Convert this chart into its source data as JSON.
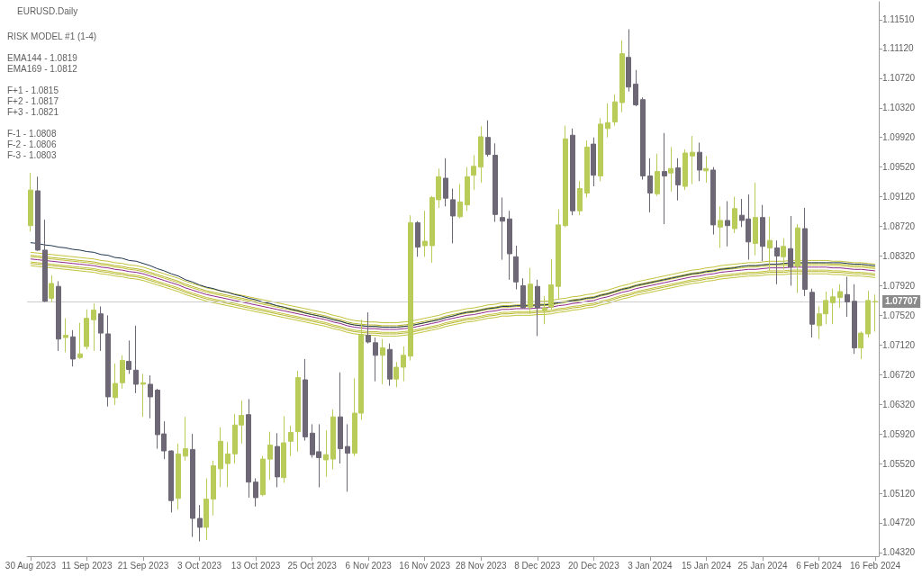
{
  "chart_data": {
    "type": "candlestick",
    "title": "EURUSD.Daily",
    "annotations": [
      "RISK MODEL #1 (1-4)",
      "EMA144 - 1.0819",
      "EMA169 - 1.0812",
      "F+1 - 1.0815",
      "F+2 - 1.0817",
      "F+3 - 1.0821",
      "F-1 - 1.0808",
      "F-2 - 1.0806",
      "F-3 - 1.0803"
    ],
    "categories": [
      "30 Aug 2023",
      null,
      null,
      null,
      null,
      null,
      null,
      null,
      "11 Sep 2023",
      null,
      null,
      null,
      null,
      null,
      null,
      null,
      "21 Sep 2023",
      null,
      null,
      null,
      null,
      null,
      null,
      null,
      "3 Oct 2023",
      null,
      null,
      null,
      null,
      null,
      null,
      null,
      "13 Oct 2023",
      null,
      null,
      null,
      null,
      null,
      null,
      null,
      "25 Oct 2023",
      null,
      null,
      null,
      null,
      null,
      null,
      null,
      "6 Nov 2023",
      null,
      null,
      null,
      null,
      null,
      null,
      null,
      "16 Nov 2023",
      null,
      null,
      null,
      null,
      null,
      null,
      null,
      "28 Nov 2023",
      null,
      null,
      null,
      null,
      null,
      null,
      null,
      "8 Dec 2023",
      null,
      null,
      null,
      null,
      null,
      null,
      null,
      "20 Dec 2023",
      null,
      null,
      null,
      null,
      null,
      null,
      null,
      "3 Jan 2024",
      null,
      null,
      null,
      null,
      null,
      null,
      null,
      "15 Jan 2024",
      null,
      null,
      null,
      null,
      null,
      null,
      null,
      "25 Jan 2024",
      null,
      null,
      null,
      null,
      null,
      null,
      null,
      "6 Feb 2024",
      null,
      null,
      null,
      null,
      null,
      null,
      null,
      "16 Feb 2024"
    ],
    "ohlc": [
      [
        1.0873,
        1.0944,
        1.0865,
        1.0921
      ],
      [
        1.092,
        1.0939,
        1.0839,
        1.084
      ],
      [
        1.084,
        1.0881,
        1.077,
        1.0771
      ],
      [
        1.0775,
        1.0806,
        1.077,
        1.0795
      ],
      [
        1.0791,
        1.0798,
        1.0704,
        1.072
      ],
      [
        1.0722,
        1.0748,
        1.0702,
        1.0725
      ],
      [
        1.0723,
        1.0732,
        1.0683,
        1.0693
      ],
      [
        1.0695,
        1.0742,
        1.0693,
        1.07
      ],
      [
        1.071,
        1.076,
        1.0706,
        1.0748
      ],
      [
        1.0746,
        1.0768,
        1.0704,
        1.0759
      ],
      [
        1.0754,
        1.0764,
        1.0704,
        1.0728
      ],
      [
        1.0727,
        1.0752,
        1.0629,
        1.0642
      ],
      [
        1.0641,
        1.0687,
        1.0631,
        1.066
      ],
      [
        1.0661,
        1.0698,
        1.0653,
        1.0691
      ],
      [
        1.069,
        1.0718,
        1.0673,
        1.0679
      ],
      [
        1.0678,
        1.0738,
        1.0647,
        1.0659
      ],
      [
        1.0659,
        1.0673,
        1.0615,
        1.0661
      ],
      [
        1.0659,
        1.0671,
        1.0613,
        1.0642
      ],
      [
        1.0651,
        1.0653,
        1.0572,
        1.0591
      ],
      [
        1.0592,
        1.0609,
        1.0558,
        1.0569
      ],
      [
        1.0569,
        1.057,
        1.0486,
        1.0502
      ],
      [
        1.0505,
        1.0579,
        1.049,
        1.0565
      ],
      [
        1.0562,
        1.0615,
        1.0556,
        1.0572
      ],
      [
        1.0571,
        1.0592,
        1.0453,
        1.0478
      ],
      [
        1.0478,
        1.0496,
        1.0447,
        1.0466
      ],
      [
        1.0466,
        1.0532,
        1.0449,
        1.0504
      ],
      [
        1.0504,
        1.0556,
        1.0482,
        1.0549
      ],
      [
        1.0545,
        1.0601,
        1.052,
        1.0582
      ],
      [
        1.0552,
        1.0581,
        1.052,
        1.0565
      ],
      [
        1.0565,
        1.0619,
        1.0552,
        1.0604
      ],
      [
        1.0604,
        1.0637,
        1.0579,
        1.0617
      ],
      [
        1.0618,
        1.0639,
        1.0506,
        1.0527
      ],
      [
        1.0527,
        1.0532,
        1.0494,
        1.0506
      ],
      [
        1.051,
        1.0562,
        1.0508,
        1.0558
      ],
      [
        1.0558,
        1.0595,
        1.053,
        1.0577
      ],
      [
        1.0575,
        1.0593,
        1.052,
        1.0534
      ],
      [
        1.0533,
        1.0616,
        1.0526,
        1.058
      ],
      [
        1.0582,
        1.0603,
        1.0562,
        1.0594
      ],
      [
        1.0595,
        1.0677,
        1.0568,
        1.0668
      ],
      [
        1.0665,
        1.0693,
        1.0583,
        1.0588
      ],
      [
        1.0593,
        1.0605,
        1.056,
        1.0564
      ],
      [
        1.0568,
        1.0605,
        1.052,
        1.056
      ],
      [
        1.0557,
        1.0597,
        1.0534,
        1.0564
      ],
      [
        1.0558,
        1.0625,
        1.0544,
        1.0615
      ],
      [
        1.0615,
        1.0675,
        1.0552,
        1.0572
      ],
      [
        1.0575,
        1.0605,
        1.0514,
        1.0566
      ],
      [
        1.0566,
        1.0667,
        1.0562,
        1.062
      ],
      [
        1.062,
        1.0746,
        1.0611,
        1.0726
      ],
      [
        1.0725,
        1.0756,
        1.0714,
        1.0716
      ],
      [
        1.0715,
        1.0722,
        1.0663,
        1.0698
      ],
      [
        1.0698,
        1.072,
        1.0659,
        1.0708
      ],
      [
        1.0706,
        1.0714,
        1.0657,
        1.0666
      ],
      [
        1.0666,
        1.0689,
        1.0655,
        1.0682
      ],
      [
        1.0682,
        1.071,
        1.0663,
        1.0698
      ],
      [
        1.0697,
        1.0887,
        1.0691,
        1.0877
      ],
      [
        1.0877,
        1.0879,
        1.0831,
        1.0844
      ],
      [
        1.0846,
        1.0893,
        1.0831,
        1.0852
      ],
      [
        1.0846,
        1.0913,
        1.0823,
        1.0911
      ],
      [
        1.0908,
        1.095,
        1.0897,
        1.0939
      ],
      [
        1.0937,
        1.0964,
        1.0899,
        1.091
      ],
      [
        1.0908,
        1.0923,
        1.0849,
        1.0886
      ],
      [
        1.0885,
        1.0929,
        1.0883,
        1.0905
      ],
      [
        1.0901,
        1.0952,
        1.0893,
        1.0939
      ],
      [
        1.0941,
        1.0968,
        1.0921,
        1.0953
      ],
      [
        1.0952,
        1.1007,
        1.0931,
        1.0993
      ],
      [
        1.0992,
        1.1015,
        1.0966,
        1.0969
      ],
      [
        1.0968,
        1.0984,
        1.0878,
        1.0888
      ],
      [
        1.0884,
        1.0911,
        1.0827,
        1.0879
      ],
      [
        1.0882,
        1.0893,
        1.08,
        1.0835
      ],
      [
        1.0831,
        1.0846,
        1.0787,
        1.0797
      ],
      [
        1.0792,
        1.0802,
        1.0761,
        1.0762
      ],
      [
        1.0763,
        1.0816,
        1.0754,
        1.0794
      ],
      [
        1.0791,
        1.08,
        1.0724,
        1.0762
      ],
      [
        1.0759,
        1.0778,
        1.074,
        1.0762
      ],
      [
        1.0763,
        1.0828,
        1.076,
        1.0793
      ],
      [
        1.0791,
        1.0895,
        1.0774,
        1.0874
      ],
      [
        1.0873,
        1.1008,
        1.0871,
        1.099
      ],
      [
        1.0995,
        1.1004,
        1.0887,
        1.0893
      ],
      [
        1.0893,
        1.0933,
        1.0887,
        1.0923
      ],
      [
        1.0917,
        1.0988,
        1.0911,
        1.0979
      ],
      [
        1.0983,
        1.0992,
        1.0926,
        1.0941
      ],
      [
        1.094,
        1.1018,
        1.0933,
        1.101
      ],
      [
        1.1004,
        1.1038,
        1.0992,
        1.1012
      ],
      [
        1.1013,
        1.105,
        1.1008,
        1.104
      ],
      [
        1.1039,
        1.1123,
        1.1026,
        1.1105
      ],
      [
        1.11,
        1.1138,
        1.1054,
        1.106
      ],
      [
        1.1064,
        1.1083,
        1.1034,
        1.1036
      ],
      [
        1.1043,
        1.1046,
        1.0935,
        1.094
      ],
      [
        1.094,
        1.0964,
        1.0891,
        1.0917
      ],
      [
        1.0916,
        1.097,
        1.0913,
        1.0946
      ],
      [
        1.0946,
        1.0998,
        1.0875,
        1.094
      ],
      [
        1.0944,
        1.0979,
        1.0919,
        1.095
      ],
      [
        1.0951,
        1.0964,
        1.0907,
        1.0928
      ],
      [
        1.0926,
        1.0976,
        1.0921,
        1.0971
      ],
      [
        1.0967,
        1.0994,
        1.0929,
        1.0972
      ],
      [
        1.0972,
        1.0985,
        1.0933,
        1.0948
      ],
      [
        1.0947,
        1.0967,
        1.0931,
        1.095
      ],
      [
        1.0948,
        1.0952,
        1.0861,
        1.0874
      ],
      [
        1.0871,
        1.0899,
        1.0843,
        1.088
      ],
      [
        1.088,
        1.0906,
        1.0845,
        1.0873
      ],
      [
        1.0869,
        1.0912,
        1.0863,
        1.0896
      ],
      [
        1.0887,
        1.0909,
        1.0871,
        1.088
      ],
      [
        1.0882,
        1.0915,
        1.0827,
        1.0851
      ],
      [
        1.0849,
        1.0931,
        1.0833,
        1.0884
      ],
      [
        1.0884,
        1.0901,
        1.0825,
        1.0845
      ],
      [
        1.0843,
        1.0885,
        1.0812,
        1.0853
      ],
      [
        1.0843,
        1.0853,
        1.0794,
        1.0832
      ],
      [
        1.0831,
        1.0856,
        1.0814,
        1.0845
      ],
      [
        1.0842,
        1.0886,
        1.0792,
        1.0817
      ],
      [
        1.0818,
        1.0875,
        1.0782,
        1.087
      ],
      [
        1.0869,
        1.0897,
        1.0778,
        1.0787
      ],
      [
        1.0783,
        1.0788,
        1.0722,
        1.074
      ],
      [
        1.0738,
        1.0764,
        1.072,
        1.0754
      ],
      [
        1.0754,
        1.0784,
        1.074,
        1.0772
      ],
      [
        1.0769,
        1.0788,
        1.074,
        1.0777
      ],
      [
        1.0776,
        1.0794,
        1.0762,
        1.0784
      ],
      [
        1.078,
        1.0804,
        1.075,
        1.077
      ],
      [
        1.0771,
        1.0794,
        1.07,
        1.0708
      ],
      [
        1.0708,
        1.073,
        1.0693,
        1.0728
      ],
      [
        1.0727,
        1.0785,
        1.0722,
        1.0772
      ],
      [
        1.077,
        1.078,
        1.073,
        1.07707
      ]
    ],
    "colors": [
      "#b9cc5a",
      "#6e6876",
      "#6e6876",
      "#b9cc5a",
      "#6e6876",
      "#b9cc5a",
      "#6e6876",
      "#b9cc5a",
      "#b9cc5a",
      "#b9cc5a",
      "#6e6876",
      "#6e6876",
      "#b9cc5a",
      "#b9cc5a",
      "#6e6876",
      "#6e6876",
      "#b9cc5a",
      "#6e6876",
      "#6e6876",
      "#6e6876",
      "#6e6876",
      "#b9cc5a",
      "#b9cc5a",
      "#6e6876",
      "#6e6876",
      "#b9cc5a",
      "#b9cc5a",
      "#b9cc5a",
      "#b9cc5a",
      "#b9cc5a",
      "#b9cc5a",
      "#6e6876",
      "#6e6876",
      "#b9cc5a",
      "#b9cc5a",
      "#6e6876",
      "#b9cc5a",
      "#b9cc5a",
      "#b9cc5a",
      "#6e6876",
      "#6e6876",
      "#6e6876",
      "#b9cc5a",
      "#b9cc5a",
      "#6e6876",
      "#6e6876",
      "#b9cc5a",
      "#b9cc5a",
      "#6e6876",
      "#6e6876",
      "#b9cc5a",
      "#6e6876",
      "#b9cc5a",
      "#b9cc5a",
      "#b9cc5a",
      "#6e6876",
      "#b9cc5a",
      "#b9cc5a",
      "#b9cc5a",
      "#6e6876",
      "#6e6876",
      "#b9cc5a",
      "#b9cc5a",
      "#b9cc5a",
      "#b9cc5a",
      "#6e6876",
      "#6e6876",
      "#6e6876",
      "#6e6876",
      "#6e6876",
      "#6e6876",
      "#b9cc5a",
      "#6e6876",
      "#b9cc5a",
      "#b9cc5a",
      "#b9cc5a",
      "#b9cc5a",
      "#6e6876",
      "#b9cc5a",
      "#b9cc5a",
      "#6e6876",
      "#b9cc5a",
      "#b9cc5a",
      "#b9cc5a",
      "#b9cc5a",
      "#6e6876",
      "#6e6876",
      "#6e6876",
      "#6e6876",
      "#b9cc5a",
      "#6e6876",
      "#b9cc5a",
      "#6e6876",
      "#b9cc5a",
      "#b9cc5a",
      "#6e6876",
      "#b9cc5a",
      "#6e6876",
      "#b9cc5a",
      "#6e6876",
      "#b9cc5a",
      "#6e6876",
      "#6e6876",
      "#b9cc5a",
      "#6e6876",
      "#b9cc5a",
      "#6e6876",
      "#b9cc5a",
      "#6e6876",
      "#b9cc5a",
      "#6e6876",
      "#6e6876",
      "#b9cc5a",
      "#b9cc5a",
      "#b9cc5a",
      "#b9cc5a",
      "#6e6876",
      "#6e6876",
      "#b9cc5a",
      "#b9cc5a",
      "#b9cc5a"
    ],
    "series": [
      {
        "type": "line",
        "color": "#c2c23a",
        "values": [
          1.0837,
          1.0836,
          1.0835,
          1.0834,
          1.0833,
          1.0832,
          1.0831,
          1.083,
          1.0829,
          1.0828,
          1.0826,
          1.0825,
          1.0823,
          1.0822,
          1.082,
          1.0819,
          1.0817,
          1.0814,
          1.0811,
          1.0808,
          1.0805,
          1.0802,
          1.0798,
          1.0795,
          1.0792,
          1.0789,
          1.0787,
          1.0785,
          1.0783,
          1.0781,
          1.0779,
          1.0777,
          1.0775,
          1.0773,
          1.0771,
          1.0769,
          1.0767,
          1.0765,
          1.0763,
          1.0761,
          1.0759,
          1.0757,
          1.0755,
          1.0752,
          1.075,
          1.0747,
          1.0745,
          1.0744,
          1.0743,
          1.0743,
          1.0742,
          1.0742,
          1.0742,
          1.0743,
          1.0744,
          1.0746,
          1.0748,
          1.075,
          1.0752,
          1.0755,
          1.0757,
          1.0759,
          1.0761,
          1.0762,
          1.0764,
          1.0766,
          1.0767,
          1.0769,
          1.0769,
          1.077,
          1.077,
          1.077,
          1.0771,
          1.0771,
          1.0772,
          1.0774,
          1.0775,
          1.0777,
          1.0778,
          1.078,
          1.0781,
          1.0784,
          1.0786,
          1.0789,
          1.0792,
          1.0794,
          1.0797,
          1.0799,
          1.0801,
          1.0803,
          1.0805,
          1.0807,
          1.0809,
          1.0811,
          1.0813,
          1.0814,
          1.0816,
          1.0817,
          1.0819,
          1.082,
          1.0821,
          1.0822,
          1.0823,
          1.0823,
          1.0824,
          1.0825,
          1.0825,
          1.0825,
          1.0826,
          1.0826,
          1.0826,
          1.0826,
          1.0826,
          1.0826,
          1.0825,
          1.0825,
          1.0824,
          1.0823,
          1.0823,
          1.0822,
          1.0821
        ]
      },
      {
        "type": "line",
        "color": "#b5b52a",
        "values": [
          1.0833,
          1.0832,
          1.0831,
          1.083,
          1.0829,
          1.0828,
          1.0827,
          1.0826,
          1.0825,
          1.0824,
          1.0822,
          1.0821,
          1.0819,
          1.0818,
          1.0816,
          1.0815,
          1.0813,
          1.081,
          1.0807,
          1.0804,
          1.0801,
          1.0798,
          1.0794,
          1.0791,
          1.0788,
          1.0785,
          1.0783,
          1.0781,
          1.0779,
          1.0777,
          1.0775,
          1.0773,
          1.0771,
          1.0769,
          1.0767,
          1.0765,
          1.0763,
          1.0761,
          1.0759,
          1.0757,
          1.0755,
          1.0753,
          1.0751,
          1.0748,
          1.0746,
          1.0743,
          1.0741,
          1.074,
          1.0739,
          1.0739,
          1.0738,
          1.0738,
          1.0738,
          1.0739,
          1.074,
          1.0742,
          1.0744,
          1.0746,
          1.0748,
          1.0751,
          1.0753,
          1.0755,
          1.0757,
          1.0758,
          1.076,
          1.0762,
          1.0763,
          1.0765,
          1.0765,
          1.0766,
          1.0766,
          1.0766,
          1.0767,
          1.0767,
          1.0768,
          1.077,
          1.0771,
          1.0773,
          1.0774,
          1.0776,
          1.0777,
          1.078,
          1.0782,
          1.0785,
          1.0788,
          1.079,
          1.0793,
          1.0795,
          1.0797,
          1.0799,
          1.0801,
          1.0803,
          1.0805,
          1.0807,
          1.0809,
          1.081,
          1.0812,
          1.0813,
          1.0815,
          1.0816,
          1.0817,
          1.0818,
          1.0819,
          1.0819,
          1.082,
          1.0821,
          1.0821,
          1.0821,
          1.0822,
          1.0822,
          1.0822,
          1.0822,
          1.0822,
          1.0822,
          1.0821,
          1.0821,
          1.082,
          1.0819,
          1.0819,
          1.0818,
          1.0817
        ]
      },
      {
        "type": "line",
        "color": "#c2c23a",
        "values": [
          1.0831,
          1.083,
          1.0829,
          1.0828,
          1.0827,
          1.0826,
          1.0825,
          1.0824,
          1.0823,
          1.0822,
          1.082,
          1.0819,
          1.0817,
          1.0816,
          1.0814,
          1.0813,
          1.0811,
          1.0808,
          1.0805,
          1.0802,
          1.0799,
          1.0796,
          1.0792,
          1.0789,
          1.0786,
          1.0783,
          1.0781,
          1.0779,
          1.0777,
          1.0775,
          1.0773,
          1.0771,
          1.0769,
          1.0767,
          1.0765,
          1.0763,
          1.0761,
          1.0759,
          1.0757,
          1.0755,
          1.0753,
          1.0751,
          1.0749,
          1.0746,
          1.0744,
          1.0741,
          1.0739,
          1.0738,
          1.0737,
          1.0737,
          1.0736,
          1.0736,
          1.0736,
          1.0737,
          1.0738,
          1.074,
          1.0742,
          1.0744,
          1.0746,
          1.0749,
          1.0751,
          1.0753,
          1.0755,
          1.0756,
          1.0758,
          1.076,
          1.0761,
          1.0763,
          1.0763,
          1.0764,
          1.0764,
          1.0764,
          1.0765,
          1.0765,
          1.0766,
          1.0768,
          1.0769,
          1.0771,
          1.0772,
          1.0774,
          1.0775,
          1.0778,
          1.078,
          1.0783,
          1.0786,
          1.0788,
          1.0791,
          1.0793,
          1.0795,
          1.0797,
          1.0799,
          1.0801,
          1.0803,
          1.0805,
          1.0807,
          1.0808,
          1.081,
          1.0811,
          1.0813,
          1.0814,
          1.0815,
          1.0816,
          1.0817,
          1.0817,
          1.0818,
          1.0819,
          1.0819,
          1.0819,
          1.082,
          1.082,
          1.082,
          1.082,
          1.082,
          1.082,
          1.0819,
          1.0819,
          1.0818,
          1.0817,
          1.0817,
          1.0816,
          1.0815
        ]
      },
      {
        "type": "line",
        "color": "#c2c23a",
        "values": [
          1.0824,
          1.0823,
          1.0822,
          1.0821,
          1.082,
          1.0819,
          1.0818,
          1.0817,
          1.0816,
          1.0815,
          1.0813,
          1.0812,
          1.081,
          1.0809,
          1.0807,
          1.0806,
          1.0804,
          1.0801,
          1.0798,
          1.0795,
          1.0792,
          1.0789,
          1.0785,
          1.0782,
          1.0779,
          1.0776,
          1.0774,
          1.0772,
          1.077,
          1.0768,
          1.0766,
          1.0764,
          1.0762,
          1.076,
          1.0758,
          1.0756,
          1.0754,
          1.0752,
          1.075,
          1.0748,
          1.0746,
          1.0744,
          1.0742,
          1.0739,
          1.0737,
          1.0734,
          1.0732,
          1.0731,
          1.073,
          1.073,
          1.0729,
          1.0729,
          1.0729,
          1.073,
          1.0731,
          1.0733,
          1.0735,
          1.0737,
          1.0739,
          1.0742,
          1.0744,
          1.0746,
          1.0748,
          1.0749,
          1.0751,
          1.0753,
          1.0754,
          1.0756,
          1.0756,
          1.0757,
          1.0757,
          1.0757,
          1.0758,
          1.0758,
          1.0759,
          1.0761,
          1.0762,
          1.0764,
          1.0765,
          1.0767,
          1.0768,
          1.0771,
          1.0773,
          1.0776,
          1.0779,
          1.0781,
          1.0784,
          1.0786,
          1.0788,
          1.079,
          1.0792,
          1.0794,
          1.0796,
          1.0798,
          1.08,
          1.0801,
          1.0803,
          1.0804,
          1.0806,
          1.0807,
          1.0808,
          1.0809,
          1.081,
          1.081,
          1.0811,
          1.0812,
          1.0812,
          1.0812,
          1.0813,
          1.0813,
          1.0813,
          1.0813,
          1.0813,
          1.0813,
          1.0812,
          1.0812,
          1.0811,
          1.081,
          1.081,
          1.0809,
          1.0808
        ]
      },
      {
        "type": "line",
        "color": "#b5b52a",
        "values": [
          1.0822,
          1.0821,
          1.082,
          1.0819,
          1.0818,
          1.0817,
          1.0816,
          1.0815,
          1.0814,
          1.0813,
          1.0811,
          1.081,
          1.0808,
          1.0807,
          1.0805,
          1.0804,
          1.0802,
          1.0799,
          1.0796,
          1.0793,
          1.079,
          1.0787,
          1.0783,
          1.078,
          1.0777,
          1.0774,
          1.0772,
          1.077,
          1.0768,
          1.0766,
          1.0764,
          1.0762,
          1.076,
          1.0758,
          1.0756,
          1.0754,
          1.0752,
          1.075,
          1.0748,
          1.0746,
          1.0744,
          1.0742,
          1.074,
          1.0737,
          1.0735,
          1.0732,
          1.073,
          1.0729,
          1.0728,
          1.0728,
          1.0727,
          1.0727,
          1.0727,
          1.0728,
          1.0729,
          1.0731,
          1.0733,
          1.0735,
          1.0737,
          1.074,
          1.0742,
          1.0744,
          1.0746,
          1.0747,
          1.0749,
          1.0751,
          1.0752,
          1.0754,
          1.0754,
          1.0755,
          1.0755,
          1.0755,
          1.0756,
          1.0756,
          1.0757,
          1.0759,
          1.076,
          1.0762,
          1.0763,
          1.0765,
          1.0766,
          1.0769,
          1.0771,
          1.0774,
          1.0777,
          1.0779,
          1.0782,
          1.0784,
          1.0786,
          1.0788,
          1.079,
          1.0792,
          1.0794,
          1.0796,
          1.0798,
          1.0799,
          1.0801,
          1.0802,
          1.0804,
          1.0805,
          1.0806,
          1.0807,
          1.0808,
          1.0808,
          1.0809,
          1.081,
          1.081,
          1.081,
          1.0811,
          1.0811,
          1.0811,
          1.0811,
          1.0811,
          1.0811,
          1.081,
          1.081,
          1.0809,
          1.0808,
          1.0808,
          1.0807,
          1.0806
        ]
      },
      {
        "type": "line",
        "color": "#c2c23a",
        "values": [
          1.0819,
          1.0818,
          1.0817,
          1.0816,
          1.0815,
          1.0814,
          1.0813,
          1.0812,
          1.0811,
          1.081,
          1.0808,
          1.0807,
          1.0805,
          1.0804,
          1.0802,
          1.0801,
          1.0799,
          1.0796,
          1.0793,
          1.079,
          1.0787,
          1.0784,
          1.078,
          1.0777,
          1.0774,
          1.0771,
          1.0769,
          1.0767,
          1.0765,
          1.0763,
          1.0761,
          1.0759,
          1.0757,
          1.0755,
          1.0753,
          1.0751,
          1.0749,
          1.0747,
          1.0745,
          1.0743,
          1.0741,
          1.0739,
          1.0737,
          1.0734,
          1.0732,
          1.0729,
          1.0727,
          1.0726,
          1.0725,
          1.0725,
          1.0724,
          1.0724,
          1.0724,
          1.0725,
          1.0726,
          1.0728,
          1.073,
          1.0732,
          1.0734,
          1.0737,
          1.0739,
          1.0741,
          1.0743,
          1.0744,
          1.0746,
          1.0748,
          1.0749,
          1.0751,
          1.0751,
          1.0752,
          1.0752,
          1.0752,
          1.0753,
          1.0753,
          1.0754,
          1.0756,
          1.0757,
          1.0759,
          1.076,
          1.0762,
          1.0763,
          1.0766,
          1.0768,
          1.0771,
          1.0774,
          1.0776,
          1.0779,
          1.0781,
          1.0783,
          1.0785,
          1.0787,
          1.0789,
          1.0791,
          1.0793,
          1.0795,
          1.0796,
          1.0798,
          1.0799,
          1.0801,
          1.0802,
          1.0803,
          1.0804,
          1.0805,
          1.0805,
          1.0806,
          1.0807,
          1.0807,
          1.0807,
          1.0808,
          1.0808,
          1.0808,
          1.0808,
          1.0808,
          1.0808,
          1.0807,
          1.0807,
          1.0806,
          1.0805,
          1.0805,
          1.0804,
          1.0803
        ]
      },
      {
        "type": "line",
        "color": "#8e2a8a",
        "values": [
          1.0828,
          1.0827,
          1.0826,
          1.0825,
          1.0824,
          1.0823,
          1.0822,
          1.0821,
          1.082,
          1.0819,
          1.0817,
          1.0816,
          1.0814,
          1.0813,
          1.0811,
          1.081,
          1.0808,
          1.0805,
          1.0802,
          1.0799,
          1.0796,
          1.0793,
          1.0789,
          1.0786,
          1.0783,
          1.078,
          1.0778,
          1.0776,
          1.0774,
          1.0772,
          1.077,
          1.0768,
          1.0766,
          1.0764,
          1.0762,
          1.076,
          1.0758,
          1.0756,
          1.0754,
          1.0752,
          1.075,
          1.0748,
          1.0746,
          1.0743,
          1.0741,
          1.0738,
          1.0736,
          1.0735,
          1.0734,
          1.0734,
          1.0733,
          1.0733,
          1.0733,
          1.0734,
          1.0735,
          1.0737,
          1.0739,
          1.0741,
          1.0743,
          1.0746,
          1.0748,
          1.075,
          1.0752,
          1.0753,
          1.0755,
          1.0757,
          1.0758,
          1.076,
          1.076,
          1.0761,
          1.0761,
          1.0761,
          1.0762,
          1.0762,
          1.0763,
          1.0765,
          1.0766,
          1.0768,
          1.0769,
          1.0771,
          1.0772,
          1.0775,
          1.0777,
          1.078,
          1.0783,
          1.0785,
          1.0788,
          1.079,
          1.0792,
          1.0794,
          1.0796,
          1.0798,
          1.08,
          1.0802,
          1.0804,
          1.0805,
          1.0807,
          1.0808,
          1.081,
          1.0811,
          1.0812,
          1.0813,
          1.0814,
          1.0814,
          1.0815,
          1.0816,
          1.0816,
          1.0816,
          1.0817,
          1.0817,
          1.0817,
          1.0817,
          1.0817,
          1.0817,
          1.0816,
          1.0816,
          1.0815,
          1.0814,
          1.0814,
          1.0813,
          1.0812
        ]
      },
      {
        "type": "line",
        "color": "#1e3550",
        "values": [
          1.085,
          1.0849,
          1.0847,
          1.0846,
          1.0844,
          1.0843,
          1.0841,
          1.084,
          1.0838,
          1.0837,
          1.0834,
          1.0833,
          1.083,
          1.0829,
          1.0826,
          1.0825,
          1.0822,
          1.0819,
          1.0815,
          1.0812,
          1.0808,
          1.0805,
          1.08,
          1.0797,
          1.0793,
          1.079,
          1.0788,
          1.0785,
          1.0783,
          1.078,
          1.0778,
          1.0775,
          1.0773,
          1.077,
          1.0768,
          1.0765,
          1.0763,
          1.076,
          1.0758,
          1.0755,
          1.0753,
          1.0751,
          1.0749,
          1.0746,
          1.0744,
          1.0741,
          1.0739,
          1.0738,
          1.0737,
          1.0737,
          1.0736,
          1.0736,
          1.0736,
          1.0737,
          1.0738,
          1.074,
          1.0742,
          1.0744,
          1.0746,
          1.0749,
          1.0751,
          1.0754,
          1.0756,
          1.0757,
          1.0759,
          1.0761,
          1.0762,
          1.0764,
          1.0764,
          1.0765,
          1.0765,
          1.0765,
          1.0766,
          1.0766,
          1.0767,
          1.0769,
          1.077,
          1.0772,
          1.0773,
          1.0775,
          1.0776,
          1.0779,
          1.0781,
          1.0784,
          1.0787,
          1.0789,
          1.0792,
          1.0794,
          1.0796,
          1.0798,
          1.08,
          1.0802,
          1.0804,
          1.0806,
          1.0808,
          1.0809,
          1.0811,
          1.0812,
          1.0814,
          1.0815,
          1.0816,
          1.0818,
          1.0819,
          1.0819,
          1.082,
          1.0821,
          1.0821,
          1.0822,
          1.0823,
          1.0823,
          1.0823,
          1.0823,
          1.0823,
          1.0823,
          1.0823,
          1.0823,
          1.0822,
          1.0821,
          1.0821,
          1.082,
          1.0819
        ]
      }
    ],
    "ylim": [
      1.0427,
      1.1175
    ],
    "yticks": [
      {
        "value": 1.0432,
        "label": "1.04320"
      },
      {
        "value": 1.0472,
        "label": "1.04720"
      },
      {
        "value": 1.0512,
        "label": "1.05120"
      },
      {
        "value": 1.0552,
        "label": "1.05520"
      },
      {
        "value": 1.0592,
        "label": "1.05920"
      },
      {
        "value": 1.0632,
        "label": "1.06320"
      },
      {
        "value": 1.0672,
        "label": "1.06720"
      },
      {
        "value": 1.0712,
        "label": "1.07120"
      },
      {
        "value": 1.0752,
        "label": "1.07520"
      },
      {
        "value": 1.0792,
        "label": "1.07920"
      },
      {
        "value": 1.0832,
        "label": "1.08320"
      },
      {
        "value": 1.0872,
        "label": "1.08720"
      },
      {
        "value": 1.0912,
        "label": "1.09120"
      },
      {
        "value": 1.0952,
        "label": "1.09520"
      },
      {
        "value": 1.0992,
        "label": "1.09920"
      },
      {
        "value": 1.1032,
        "label": "1.10320"
      },
      {
        "value": 1.1072,
        "label": "1.10720"
      },
      {
        "value": 1.1112,
        "label": "1.11120"
      },
      {
        "value": 1.1151,
        "label": "1.11510"
      }
    ],
    "ref_lines": [
      {
        "axis": "y",
        "value": 1.07707,
        "label": "1.07707",
        "color": "#cccccc"
      }
    ]
  }
}
